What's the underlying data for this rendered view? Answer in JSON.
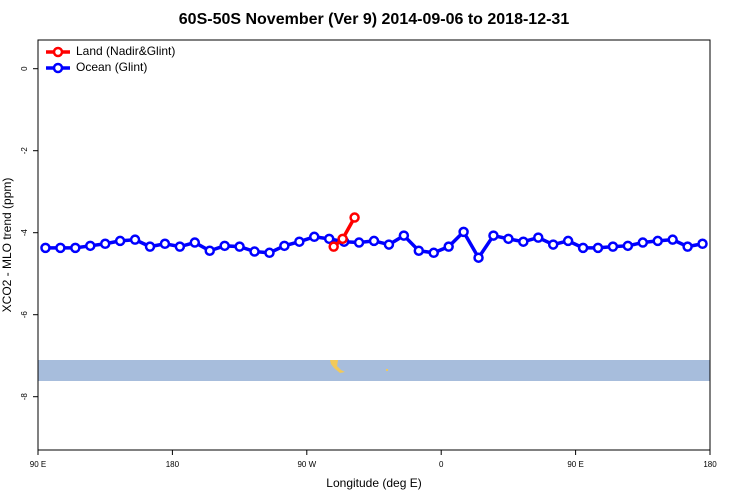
{
  "chart_data": {
    "type": "line",
    "title": "60S-50S November (Ver 9)   2014-09-06 to 2018-12-31",
    "x_label": "Longitude (deg E)",
    "y_label": "XCO2 - MLO trend (ppm)",
    "xlim": [
      90,
      540
    ],
    "xticks": [
      {
        "value": 90,
        "label": "90 E"
      },
      180,
      {
        "value": 270,
        "label": "90 W"
      },
      {
        "value": 360,
        "label": "0"
      },
      {
        "value": 450,
        "label": "90 E"
      },
      {
        "value": 540,
        "label": "180"
      }
    ],
    "ylim": [
      -9.3,
      0.7
    ],
    "yticks": [
      0,
      -2,
      -4,
      -6,
      -8
    ],
    "legend": "top-left",
    "series": [
      {
        "name": "Land (Nadir&Glint)",
        "color": "#ff0000",
        "x": [
          288,
          294,
          302
        ],
        "values": [
          -4.34,
          -4.15,
          -3.63
        ]
      },
      {
        "name": "Ocean (Glint)",
        "color": "#0000ff",
        "x": [
          95,
          105,
          115,
          125,
          135,
          145,
          155,
          165,
          175,
          185,
          195,
          205,
          215,
          225,
          235,
          245,
          255,
          265,
          275,
          285,
          295,
          305,
          315,
          325,
          335,
          345,
          355,
          365,
          375,
          385,
          395,
          405,
          415,
          425,
          435,
          445,
          455,
          465,
          475,
          485,
          495,
          505,
          515,
          525,
          535
        ],
        "values": [
          -4.37,
          -4.37,
          -4.37,
          -4.32,
          -4.27,
          -4.2,
          -4.17,
          -4.34,
          -4.27,
          -4.34,
          -4.24,
          -4.44,
          -4.32,
          -4.34,
          -4.46,
          -4.49,
          -4.32,
          -4.22,
          -4.1,
          -4.15,
          -4.22,
          -4.24,
          -4.2,
          -4.29,
          -4.07,
          -4.44,
          -4.49,
          -4.34,
          -3.98,
          -4.61,
          -4.07,
          -4.15,
          -4.22,
          -4.12,
          -4.29,
          -4.2,
          -4.37,
          -4.37,
          -4.34,
          -4.32,
          -4.24,
          -4.2,
          -4.17,
          -4.34,
          -4.27
        ]
      }
    ]
  }
}
